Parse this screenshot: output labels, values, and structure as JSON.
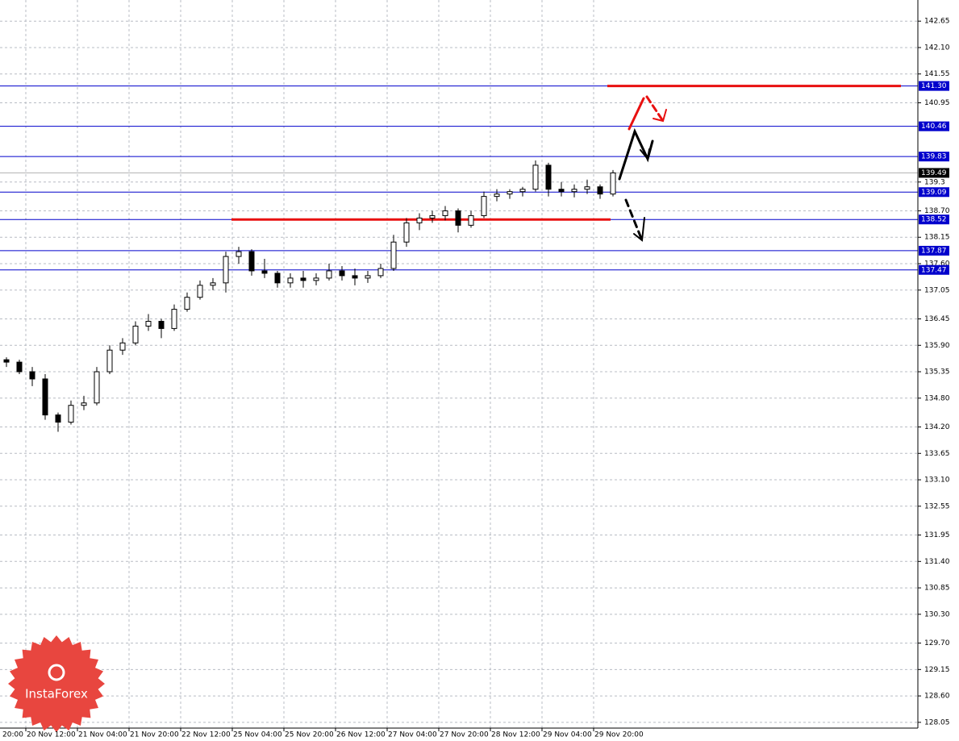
{
  "chart_data": {
    "type": "candlestick",
    "open": [
      135.6,
      135.55,
      135.35,
      135.2,
      134.45,
      134.3,
      134.65,
      134.7,
      135.35,
      135.8,
      135.95,
      136.3,
      136.4,
      136.25,
      136.65,
      136.9,
      137.15,
      137.2,
      137.75,
      137.85,
      137.45,
      137.4,
      137.2,
      137.3,
      137.25,
      137.3,
      137.45,
      137.35,
      137.3,
      137.35,
      137.5,
      138.05,
      138.45,
      138.55,
      138.6,
      138.7,
      138.4,
      138.6,
      139.0,
      139.05,
      139.1,
      139.15,
      139.65,
      139.15,
      139.1,
      139.15,
      139.2,
      139.05
    ],
    "high": [
      135.65,
      135.6,
      135.45,
      135.3,
      134.5,
      134.75,
      134.85,
      135.45,
      135.9,
      136.05,
      136.4,
      136.55,
      136.45,
      136.75,
      137.0,
      137.25,
      137.3,
      137.85,
      137.95,
      137.9,
      137.7,
      137.45,
      137.4,
      137.45,
      137.4,
      137.6,
      137.55,
      137.5,
      137.45,
      137.6,
      138.2,
      138.55,
      138.65,
      138.7,
      138.8,
      138.75,
      138.7,
      139.1,
      139.15,
      139.15,
      139.2,
      139.75,
      139.7,
      139.3,
      139.25,
      139.35,
      139.25,
      139.55
    ],
    "low": [
      135.45,
      135.3,
      135.05,
      134.35,
      134.1,
      134.25,
      134.55,
      134.65,
      135.3,
      135.7,
      135.9,
      136.2,
      136.05,
      136.2,
      136.6,
      136.85,
      137.05,
      137.0,
      137.6,
      137.35,
      137.3,
      137.1,
      137.1,
      137.1,
      137.15,
      137.25,
      137.25,
      137.15,
      137.2,
      137.3,
      137.45,
      137.95,
      138.3,
      138.45,
      138.5,
      138.25,
      138.35,
      138.55,
      138.9,
      138.95,
      139.0,
      139.1,
      139.0,
      139.0,
      138.98,
      139.05,
      138.95,
      139.0
    ],
    "close": [
      135.55,
      135.35,
      135.2,
      134.45,
      134.3,
      134.65,
      134.7,
      135.35,
      135.8,
      135.95,
      136.3,
      136.4,
      136.25,
      136.65,
      136.9,
      137.15,
      137.2,
      137.75,
      137.85,
      137.45,
      137.4,
      137.2,
      137.3,
      137.25,
      137.3,
      137.45,
      137.35,
      137.3,
      137.35,
      137.5,
      138.05,
      138.45,
      138.55,
      138.6,
      138.7,
      138.4,
      138.6,
      139.0,
      139.05,
      139.1,
      139.15,
      139.65,
      139.15,
      139.1,
      139.15,
      139.2,
      139.05,
      139.49
    ],
    "x_labels": [
      "20:00",
      "20 Nov 12:00",
      "21 Nov 04:00",
      "21 Nov 20:00",
      "22 Nov 12:00",
      "25 Nov 04:00",
      "25 Nov 20:00",
      "26 Nov 12:00",
      "27 Nov 04:00",
      "27 Nov 20:00",
      "28 Nov 12:00",
      "29 Nov 04:00",
      "29 Nov 20:00"
    ],
    "ylim": [
      127.93,
      143.09
    ],
    "yticks": [
      142.65,
      {
        "value": 142.1,
        "label": "142.10"
      },
      141.55,
      140.95,
      139.3,
      {
        "value": 138.7,
        "label": "138.70"
      },
      138.15,
      {
        "value": 137.6,
        "label": "137.60"
      },
      137.05,
      136.45,
      {
        "value": 135.9,
        "label": "135.90"
      },
      135.35,
      {
        "value": 134.8,
        "label": "134.80"
      },
      {
        "value": 134.2,
        "label": "134.20"
      },
      133.65,
      {
        "value": 133.1,
        "label": "133.10"
      },
      132.55,
      131.95,
      {
        "value": 131.4,
        "label": "131.40"
      },
      130.85,
      {
        "value": 130.3,
        "label": "130.30"
      },
      {
        "value": 129.7,
        "label": "129.70"
      },
      129.15,
      {
        "value": 128.6,
        "label": "128.60"
      },
      128.05
    ],
    "levels": [
      {
        "value": 141.3,
        "label": "141.30"
      },
      140.46,
      139.83,
      139.09,
      138.52,
      137.87,
      137.47
    ],
    "current_price": 139.49,
    "red_lines": [
      {
        "value": 141.3,
        "label": "141.30"
      },
      138.52
    ],
    "level_color": "#0000cc",
    "red_color": "#e81010",
    "grid": true,
    "watermark": "InstaForex"
  }
}
